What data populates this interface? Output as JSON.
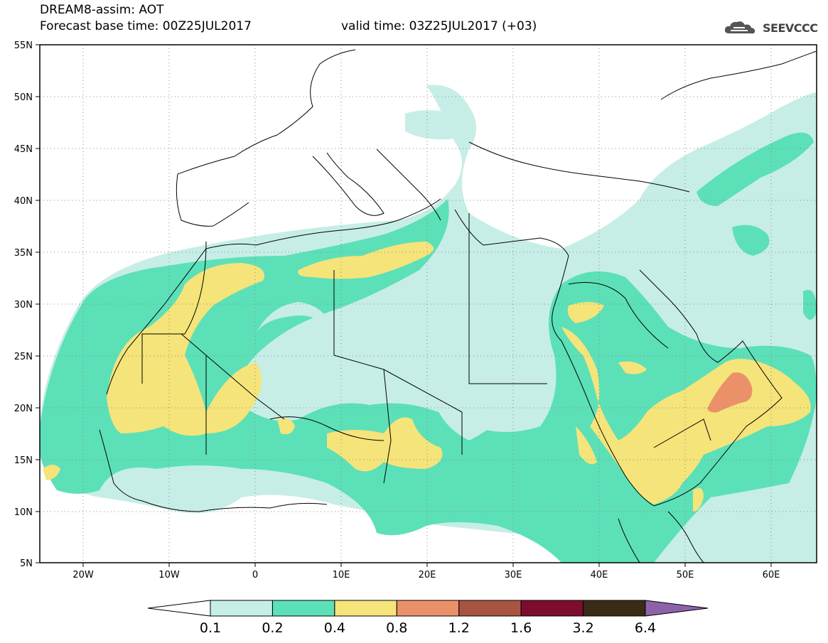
{
  "header": {
    "title": "DREAM8-assim: AOT",
    "base_time": "Forecast base time: 00Z25JUL2017",
    "valid_time": "valid time: 03Z25JUL2017 (+03)"
  },
  "logo": {
    "text": "SEEVCCC",
    "icon": "cloud-icon"
  },
  "map": {
    "lon_range": [
      -25,
      65
    ],
    "lat_range": [
      5,
      55
    ],
    "lon_ticks": [
      "20W",
      "10W",
      "0",
      "10E",
      "20E",
      "30E",
      "40E",
      "50E",
      "60E"
    ],
    "lat_ticks": [
      "55N",
      "50N",
      "45N",
      "40N",
      "35N",
      "30N",
      "25N",
      "20N",
      "15N",
      "10N",
      "5N"
    ],
    "grid": "dotted"
  },
  "colorbar": {
    "labels": [
      "0.1",
      "0.2",
      "0.4",
      "0.8",
      "1.2",
      "1.6",
      "3.2",
      "6.4"
    ],
    "colors": [
      "#ffffff",
      "#c6eee6",
      "#5ce0b8",
      "#f5e47a",
      "#eb9169",
      "#a95442",
      "#7d0d2e",
      "#3a2b16",
      "#8c63a9"
    ]
  }
}
